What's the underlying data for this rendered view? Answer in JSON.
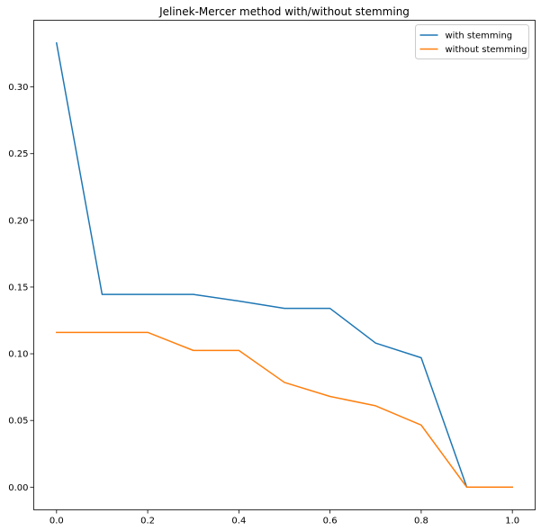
{
  "chart_data": {
    "type": "line",
    "title": "Jelinek-Mercer method with/without stemming",
    "xlabel": "",
    "ylabel": "",
    "xlim": [
      -0.05,
      1.05
    ],
    "ylim": [
      -0.017,
      0.35
    ],
    "xticks": [
      0.0,
      0.2,
      0.4,
      0.6,
      0.8,
      1.0
    ],
    "xtick_labels": [
      "0.0",
      "0.2",
      "0.4",
      "0.6",
      "0.8",
      "1.0"
    ],
    "yticks": [
      0.0,
      0.05,
      0.1,
      0.15,
      0.2,
      0.25,
      0.3
    ],
    "ytick_labels": [
      "0.00",
      "0.05",
      "0.10",
      "0.15",
      "0.20",
      "0.25",
      "0.30"
    ],
    "grid": false,
    "legend_position": "upper right",
    "x": [
      0.0,
      0.1,
      0.2,
      0.3,
      0.4,
      0.5,
      0.6,
      0.7,
      0.8,
      0.9,
      1.0
    ],
    "series": [
      {
        "name": "with stemming",
        "color": "#1f77b4",
        "values": [
          0.333,
          0.1445,
          0.1445,
          0.1445,
          0.1395,
          0.134,
          0.134,
          0.108,
          0.097,
          0.0,
          0.0
        ]
      },
      {
        "name": "without stemming",
        "color": "#ff7f0e",
        "values": [
          0.116,
          0.116,
          0.116,
          0.1025,
          0.1025,
          0.0785,
          0.068,
          0.061,
          0.0465,
          0.0,
          0.0
        ]
      }
    ]
  }
}
